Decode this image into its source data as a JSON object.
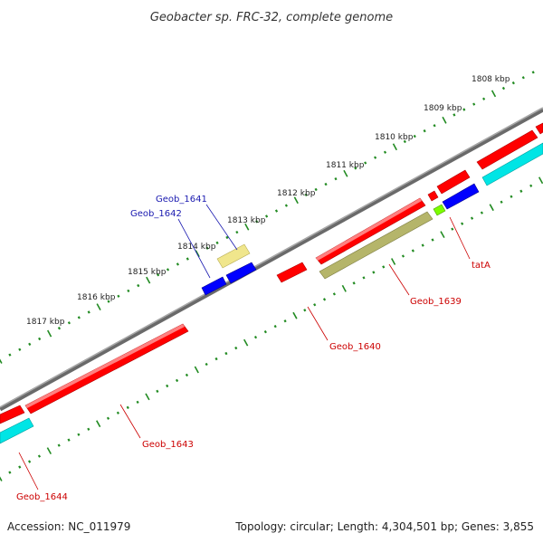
{
  "title": "Geobacter sp. FRC-32, complete genome",
  "footer": {
    "accession": "Accession: NC_011979",
    "summary": "Topology: circular; Length: 4,304,501 bp; Genes: 3,855"
  },
  "scale_labels": [
    "1808 kbp",
    "1809 kbp",
    "1810 kbp",
    "1811 kbp",
    "1812 kbp",
    "1813 kbp",
    "1814 kbp",
    "1815 kbp",
    "1816 kbp",
    "1817 kbp"
  ],
  "gene_labels": [
    {
      "name": "Geob_1641",
      "text": "Geob_1641",
      "color": "#1a1ab0"
    },
    {
      "name": "Geob_1642",
      "text": "Geob_1642",
      "color": "#1a1ab0"
    },
    {
      "name": "tatA",
      "text": "tatA",
      "color": "#cc0000"
    },
    {
      "name": "Geob_1639",
      "text": "Geob_1639",
      "color": "#cc0000"
    },
    {
      "name": "Geob_1640",
      "text": "Geob_1640",
      "color": "#cc0000"
    },
    {
      "name": "Geob_1643",
      "text": "Geob_1643",
      "color": "#cc0000"
    },
    {
      "name": "Geob_1644",
      "text": "Geob_1644",
      "color": "#cc0000"
    }
  ],
  "colors": {
    "backbone": "#808080",
    "ticks": "#228b22",
    "cds_forward": "#ff0000",
    "cds_reverse": "#0000ff",
    "rrna_misc": "#00e5e5",
    "pseudo_light": "#f0e68c",
    "pseudo_dark": "#b5b56a",
    "small_feature": "#7cfc00"
  }
}
